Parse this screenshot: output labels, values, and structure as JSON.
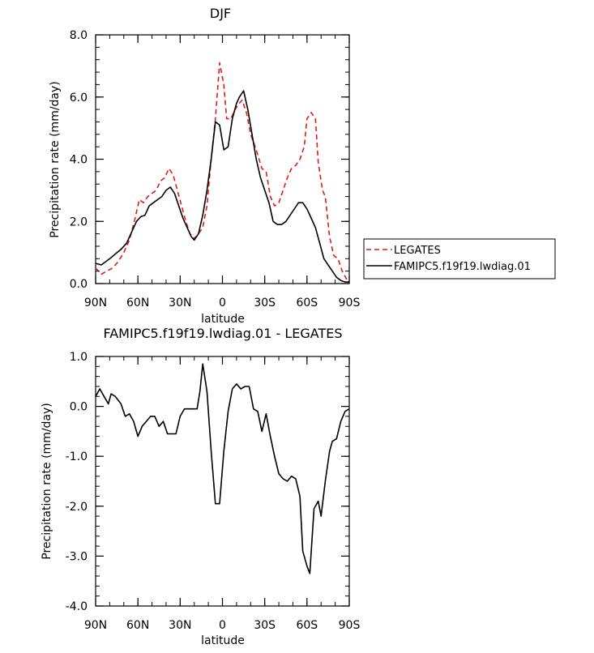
{
  "chart_data": [
    {
      "type": "line",
      "title": "DJF",
      "xlabel": "latitude",
      "ylabel": "Precipitation rate (mm/day)",
      "ylim": [
        0,
        8
      ],
      "yticks": [
        {
          "value": 0,
          "label": "0.0"
        },
        {
          "value": 2,
          "label": "2.0"
        },
        {
          "value": 4,
          "label": "4.0"
        },
        {
          "value": 6,
          "label": "6.0"
        },
        {
          "value": 8,
          "label": "8.0"
        }
      ],
      "xticks": [
        {
          "value": 90,
          "label": "90N"
        },
        {
          "value": 60,
          "label": "60N"
        },
        {
          "value": 30,
          "label": "30N"
        },
        {
          "value": 0,
          "label": "0"
        },
        {
          "value": -30,
          "label": "30S"
        },
        {
          "value": -60,
          "label": "60S"
        },
        {
          "value": -90,
          "label": "90S"
        }
      ],
      "xlim": [
        90,
        -90
      ],
      "legend_position": "right",
      "series": [
        {
          "name": "LEGATES",
          "color": "#e31a1c",
          "dash": "dashed",
          "points": [
            [
              90,
              0.5
            ],
            [
              86,
              0.3
            ],
            [
              82,
              0.4
            ],
            [
              78,
              0.5
            ],
            [
              74,
              0.7
            ],
            [
              70,
              1.0
            ],
            [
              66,
              1.4
            ],
            [
              62,
              2.1
            ],
            [
              59,
              2.7
            ],
            [
              56,
              2.6
            ],
            [
              53,
              2.8
            ],
            [
              50,
              2.9
            ],
            [
              47,
              3.0
            ],
            [
              44,
              3.3
            ],
            [
              41,
              3.4
            ],
            [
              38,
              3.7
            ],
            [
              35,
              3.5
            ],
            [
              32,
              3.0
            ],
            [
              29,
              2.5
            ],
            [
              26,
              2.0
            ],
            [
              23,
              1.6
            ],
            [
              20,
              1.45
            ],
            [
              17,
              1.6
            ],
            [
              14,
              1.8
            ],
            [
              11,
              2.5
            ],
            [
              8,
              4.0
            ],
            [
              5,
              5.3
            ],
            [
              2,
              7.1
            ],
            [
              -1,
              6.4
            ],
            [
              -3,
              5.3
            ],
            [
              -6,
              5.3
            ],
            [
              -9,
              5.6
            ],
            [
              -12,
              5.8
            ],
            [
              -14,
              5.9
            ],
            [
              -17,
              5.5
            ],
            [
              -20,
              4.8
            ],
            [
              -24,
              4.3
            ],
            [
              -28,
              3.7
            ],
            [
              -31,
              3.6
            ],
            [
              -34,
              2.8
            ],
            [
              -37,
              2.5
            ],
            [
              -40,
              2.6
            ],
            [
              -43,
              3.0
            ],
            [
              -46,
              3.4
            ],
            [
              -49,
              3.7
            ],
            [
              -52,
              3.8
            ],
            [
              -55,
              4.0
            ],
            [
              -58,
              4.4
            ],
            [
              -60,
              5.3
            ],
            [
              -63,
              5.5
            ],
            [
              -66,
              5.3
            ],
            [
              -68,
              3.9
            ],
            [
              -71,
              3.0
            ],
            [
              -73,
              2.8
            ],
            [
              -76,
              1.5
            ],
            [
              -79,
              0.9
            ],
            [
              -82,
              0.8
            ],
            [
              -85,
              0.4
            ],
            [
              -88,
              0.15
            ],
            [
              -90,
              0.05
            ]
          ]
        },
        {
          "name": "FAMIPC5.f19f19.lwdiag.01",
          "color": "#000000",
          "dash": "solid",
          "points": [
            [
              90,
              0.65
            ],
            [
              86,
              0.6
            ],
            [
              83,
              0.7
            ],
            [
              80,
              0.8
            ],
            [
              76,
              0.95
            ],
            [
              72,
              1.1
            ],
            [
              68,
              1.3
            ],
            [
              64,
              1.7
            ],
            [
              61,
              2.0
            ],
            [
              58,
              2.15
            ],
            [
              55,
              2.2
            ],
            [
              52,
              2.5
            ],
            [
              49,
              2.6
            ],
            [
              46,
              2.7
            ],
            [
              43,
              2.8
            ],
            [
              40,
              3.0
            ],
            [
              37,
              3.1
            ],
            [
              34,
              2.9
            ],
            [
              31,
              2.5
            ],
            [
              28,
              2.1
            ],
            [
              25,
              1.8
            ],
            [
              22,
              1.5
            ],
            [
              20,
              1.4
            ],
            [
              17,
              1.6
            ],
            [
              14,
              2.2
            ],
            [
              11,
              3.0
            ],
            [
              8,
              4.0
            ],
            [
              5,
              5.2
            ],
            [
              2,
              5.1
            ],
            [
              -1,
              4.3
            ],
            [
              -4,
              4.4
            ],
            [
              -7,
              5.3
            ],
            [
              -10,
              5.8
            ],
            [
              -12,
              6.0
            ],
            [
              -15,
              6.2
            ],
            [
              -18,
              5.6
            ],
            [
              -21,
              4.8
            ],
            [
              -24,
              4.0
            ],
            [
              -27,
              3.4
            ],
            [
              -30,
              3.0
            ],
            [
              -33,
              2.6
            ],
            [
              -36,
              2.0
            ],
            [
              -39,
              1.9
            ],
            [
              -42,
              1.9
            ],
            [
              -45,
              2.0
            ],
            [
              -48,
              2.2
            ],
            [
              -51,
              2.4
            ],
            [
              -54,
              2.6
            ],
            [
              -57,
              2.6
            ],
            [
              -60,
              2.4
            ],
            [
              -63,
              2.1
            ],
            [
              -66,
              1.8
            ],
            [
              -69,
              1.3
            ],
            [
              -72,
              0.8
            ],
            [
              -75,
              0.6
            ],
            [
              -78,
              0.4
            ],
            [
              -81,
              0.2
            ],
            [
              -84,
              0.1
            ],
            [
              -87,
              0.05
            ],
            [
              -90,
              0.05
            ]
          ]
        }
      ]
    },
    {
      "type": "line",
      "title": "FAMIPC5.f19f19.lwdiag.01 - LEGATES",
      "xlabel": "latitude",
      "ylabel": "Precipitation rate (mm/day)",
      "ylim": [
        -4,
        1
      ],
      "yticks": [
        {
          "value": 1,
          "label": "1.0"
        },
        {
          "value": 0,
          "label": "0.0"
        },
        {
          "value": -1,
          "label": "-1.0"
        },
        {
          "value": -2,
          "label": "-2.0"
        },
        {
          "value": -3,
          "label": "-3.0"
        },
        {
          "value": -4,
          "label": "-4.0"
        }
      ],
      "xticks": [
        {
          "value": 90,
          "label": "90N"
        },
        {
          "value": 60,
          "label": "60N"
        },
        {
          "value": 30,
          "label": "30N"
        },
        {
          "value": 0,
          "label": "0"
        },
        {
          "value": -30,
          "label": "30S"
        },
        {
          "value": -60,
          "label": "60S"
        },
        {
          "value": -90,
          "label": "90S"
        }
      ],
      "xlim": [
        90,
        -90
      ],
      "series": [
        {
          "name": "",
          "color": "#000000",
          "dash": "solid",
          "points": [
            [
              90,
              0.2
            ],
            [
              87,
              0.35
            ],
            [
              84,
              0.2
            ],
            [
              81,
              0.05
            ],
            [
              79,
              0.25
            ],
            [
              76,
              0.2
            ],
            [
              72,
              0.05
            ],
            [
              69,
              -0.2
            ],
            [
              66,
              -0.15
            ],
            [
              63,
              -0.3
            ],
            [
              60,
              -0.6
            ],
            [
              57,
              -0.4
            ],
            [
              54,
              -0.3
            ],
            [
              51,
              -0.2
            ],
            [
              48,
              -0.2
            ],
            [
              45,
              -0.4
            ],
            [
              42,
              -0.3
            ],
            [
              39,
              -0.55
            ],
            [
              36,
              -0.55
            ],
            [
              33,
              -0.55
            ],
            [
              30,
              -0.2
            ],
            [
              27,
              -0.05
            ],
            [
              24,
              -0.05
            ],
            [
              21,
              -0.05
            ],
            [
              18,
              -0.05
            ],
            [
              16,
              0.3
            ],
            [
              14,
              0.85
            ],
            [
              11,
              0.3
            ],
            [
              8,
              -0.9
            ],
            [
              5,
              -1.95
            ],
            [
              2,
              -1.95
            ],
            [
              -1,
              -0.9
            ],
            [
              -4,
              -0.1
            ],
            [
              -7,
              0.35
            ],
            [
              -10,
              0.45
            ],
            [
              -13,
              0.35
            ],
            [
              -16,
              0.4
            ],
            [
              -19,
              0.4
            ],
            [
              -22,
              -0.05
            ],
            [
              -25,
              -0.1
            ],
            [
              -28,
              -0.5
            ],
            [
              -31,
              -0.15
            ],
            [
              -34,
              -0.6
            ],
            [
              -37,
              -1.0
            ],
            [
              -40,
              -1.35
            ],
            [
              -43,
              -1.45
            ],
            [
              -46,
              -1.5
            ],
            [
              -49,
              -1.4
            ],
            [
              -52,
              -1.45
            ],
            [
              -55,
              -1.8
            ],
            [
              -57,
              -2.9
            ],
            [
              -60,
              -3.2
            ],
            [
              -62,
              -3.35
            ],
            [
              -65,
              -2.05
            ],
            [
              -68,
              -1.9
            ],
            [
              -70,
              -2.2
            ],
            [
              -73,
              -1.5
            ],
            [
              -76,
              -0.9
            ],
            [
              -78,
              -0.7
            ],
            [
              -81,
              -0.65
            ],
            [
              -84,
              -0.3
            ],
            [
              -87,
              -0.1
            ],
            [
              -90,
              -0.05
            ]
          ]
        }
      ]
    }
  ]
}
